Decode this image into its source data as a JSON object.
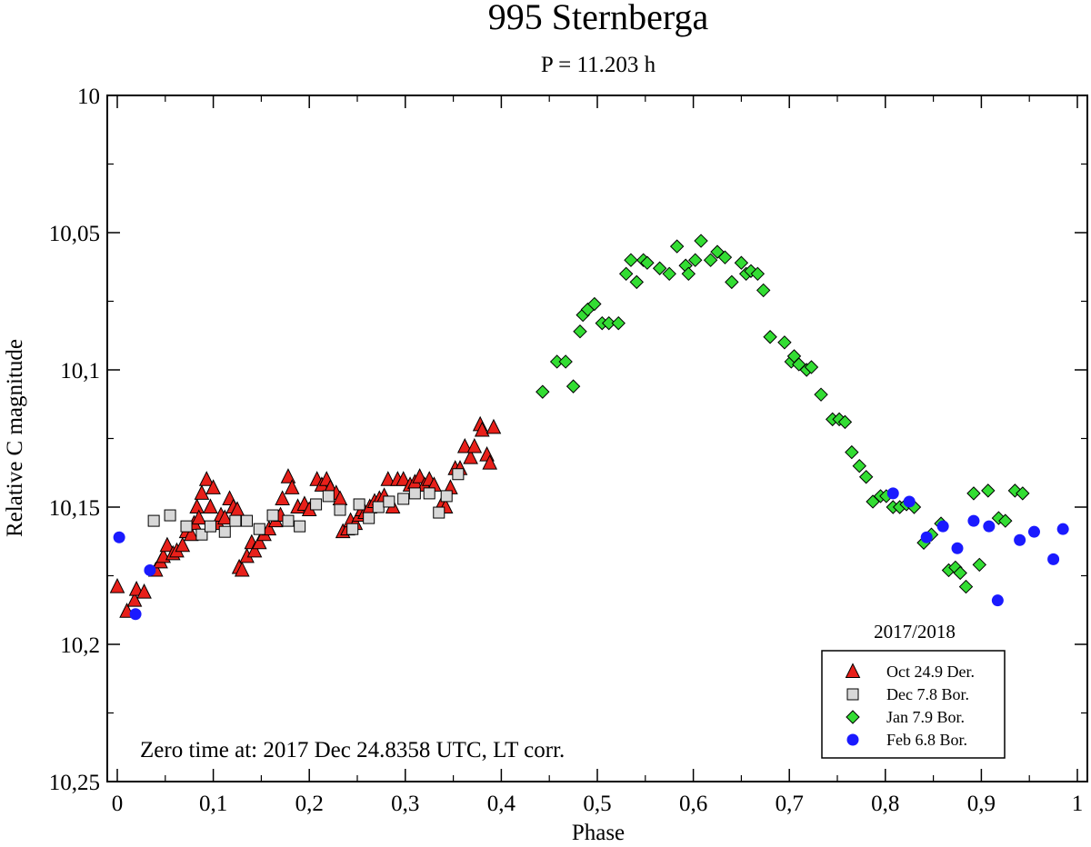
{
  "chart_data": {
    "type": "scatter",
    "title": "995 Sternberga",
    "subtitle": "P = 11.203 h",
    "xlabel": "Phase",
    "ylabel": "Relative C magnitude",
    "xlim": [
      0,
      1
    ],
    "ylim": [
      10,
      10.25
    ],
    "y_inverted": true,
    "x_ticks": [
      {
        "value": 0,
        "label": "0"
      },
      {
        "value": 0.1,
        "label": "0,1"
      },
      {
        "value": 0.2,
        "label": "0,2"
      },
      {
        "value": 0.3,
        "label": "0,3"
      },
      {
        "value": 0.4,
        "label": "0,4"
      },
      {
        "value": 0.5,
        "label": "0,5"
      },
      {
        "value": 0.6,
        "label": "0,6"
      },
      {
        "value": 0.7,
        "label": "0,7"
      },
      {
        "value": 0.8,
        "label": "0,8"
      },
      {
        "value": 0.9,
        "label": "0,9"
      },
      {
        "value": 1,
        "label": "1"
      }
    ],
    "y_ticks": [
      {
        "value": 10,
        "label": "10"
      },
      {
        "value": 10.05,
        "label": "10,05"
      },
      {
        "value": 10.1,
        "label": "10,1"
      },
      {
        "value": 10.15,
        "label": "10,15"
      },
      {
        "value": 10.2,
        "label": "10,2"
      },
      {
        "value": 10.25,
        "label": "10,25"
      }
    ],
    "legend": {
      "title": "2017/2018",
      "position": "bottom-right"
    },
    "annotation": "Zero time at: 2017 Dec 24.8358 UTC, LT corr.",
    "series": [
      {
        "name": "Oct 24.9 Der.",
        "marker": "triangle",
        "color": "#e8201a",
        "points": [
          [
            0.0,
            10.179
          ],
          [
            0.01,
            10.188
          ],
          [
            0.018,
            10.184
          ],
          [
            0.02,
            10.18
          ],
          [
            0.028,
            10.181
          ],
          [
            0.04,
            10.173
          ],
          [
            0.045,
            10.17
          ],
          [
            0.048,
            10.168
          ],
          [
            0.052,
            10.164
          ],
          [
            0.058,
            10.167
          ],
          [
            0.062,
            10.166
          ],
          [
            0.068,
            10.164
          ],
          [
            0.072,
            10.159
          ],
          [
            0.077,
            10.16
          ],
          [
            0.08,
            10.156
          ],
          [
            0.083,
            10.15
          ],
          [
            0.085,
            10.154
          ],
          [
            0.088,
            10.145
          ],
          [
            0.093,
            10.14
          ],
          [
            0.097,
            10.15
          ],
          [
            0.1,
            10.143
          ],
          [
            0.105,
            10.156
          ],
          [
            0.108,
            10.153
          ],
          [
            0.112,
            10.154
          ],
          [
            0.117,
            10.147
          ],
          [
            0.121,
            10.15
          ],
          [
            0.125,
            10.151
          ],
          [
            0.127,
            10.172
          ],
          [
            0.13,
            10.173
          ],
          [
            0.135,
            10.168
          ],
          [
            0.14,
            10.163
          ],
          [
            0.143,
            10.166
          ],
          [
            0.148,
            10.163
          ],
          [
            0.153,
            10.16
          ],
          [
            0.158,
            10.158
          ],
          [
            0.165,
            10.155
          ],
          [
            0.17,
            10.153
          ],
          [
            0.172,
            10.147
          ],
          [
            0.178,
            10.139
          ],
          [
            0.182,
            10.143
          ],
          [
            0.188,
            10.15
          ],
          [
            0.195,
            10.149
          ],
          [
            0.2,
            10.151
          ],
          [
            0.208,
            10.14
          ],
          [
            0.213,
            10.142
          ],
          [
            0.218,
            10.14
          ],
          [
            0.222,
            10.143
          ],
          [
            0.228,
            10.145
          ],
          [
            0.232,
            10.147
          ],
          [
            0.235,
            10.159
          ],
          [
            0.24,
            10.158
          ],
          [
            0.243,
            10.155
          ],
          [
            0.248,
            10.156
          ],
          [
            0.252,
            10.153
          ],
          [
            0.255,
            10.151
          ],
          [
            0.258,
            10.152
          ],
          [
            0.263,
            10.15
          ],
          [
            0.268,
            10.148
          ],
          [
            0.273,
            10.147
          ],
          [
            0.278,
            10.146
          ],
          [
            0.282,
            10.14
          ],
          [
            0.287,
            10.15
          ],
          [
            0.292,
            10.14
          ],
          [
            0.298,
            10.14
          ],
          [
            0.305,
            10.142
          ],
          [
            0.31,
            10.141
          ],
          [
            0.315,
            10.139
          ],
          [
            0.32,
            10.142
          ],
          [
            0.325,
            10.14
          ],
          [
            0.33,
            10.142
          ],
          [
            0.338,
            10.149
          ],
          [
            0.342,
            10.15
          ],
          [
            0.347,
            10.143
          ],
          [
            0.352,
            10.136
          ],
          [
            0.357,
            10.136
          ],
          [
            0.362,
            10.128
          ],
          [
            0.368,
            10.132
          ],
          [
            0.372,
            10.128
          ],
          [
            0.378,
            10.12
          ],
          [
            0.38,
            10.122
          ],
          [
            0.385,
            10.131
          ],
          [
            0.388,
            10.134
          ],
          [
            0.392,
            10.121
          ]
        ]
      },
      {
        "name": "Dec 7.8 Bor.",
        "marker": "square",
        "color": "#d8d8d8",
        "points": [
          [
            0.038,
            10.155
          ],
          [
            0.055,
            10.153
          ],
          [
            0.072,
            10.157
          ],
          [
            0.088,
            10.16
          ],
          [
            0.097,
            10.157
          ],
          [
            0.112,
            10.159
          ],
          [
            0.123,
            10.155
          ],
          [
            0.135,
            10.155
          ],
          [
            0.148,
            10.158
          ],
          [
            0.162,
            10.153
          ],
          [
            0.178,
            10.155
          ],
          [
            0.19,
            10.157
          ],
          [
            0.207,
            10.149
          ],
          [
            0.22,
            10.146
          ],
          [
            0.232,
            10.151
          ],
          [
            0.245,
            10.158
          ],
          [
            0.252,
            10.149
          ],
          [
            0.262,
            10.154
          ],
          [
            0.272,
            10.15
          ],
          [
            0.283,
            10.148
          ],
          [
            0.298,
            10.147
          ],
          [
            0.31,
            10.145
          ],
          [
            0.325,
            10.145
          ],
          [
            0.335,
            10.152
          ],
          [
            0.343,
            10.146
          ],
          [
            0.355,
            10.138
          ]
        ]
      },
      {
        "name": "Jan 7.9 Bor.",
        "marker": "diamond",
        "color": "#33dd33",
        "points": [
          [
            0.443,
            10.108
          ],
          [
            0.458,
            10.097
          ],
          [
            0.467,
            10.097
          ],
          [
            0.475,
            10.106
          ],
          [
            0.482,
            10.086
          ],
          [
            0.485,
            10.08
          ],
          [
            0.49,
            10.078
          ],
          [
            0.497,
            10.076
          ],
          [
            0.505,
            10.083
          ],
          [
            0.512,
            10.083
          ],
          [
            0.522,
            10.083
          ],
          [
            0.53,
            10.065
          ],
          [
            0.535,
            10.06
          ],
          [
            0.541,
            10.068
          ],
          [
            0.548,
            10.06
          ],
          [
            0.552,
            10.061
          ],
          [
            0.565,
            10.063
          ],
          [
            0.575,
            10.065
          ],
          [
            0.583,
            10.055
          ],
          [
            0.592,
            10.062
          ],
          [
            0.595,
            10.065
          ],
          [
            0.602,
            10.06
          ],
          [
            0.608,
            10.053
          ],
          [
            0.618,
            10.06
          ],
          [
            0.625,
            10.057
          ],
          [
            0.633,
            10.059
          ],
          [
            0.64,
            10.068
          ],
          [
            0.65,
            10.061
          ],
          [
            0.655,
            10.065
          ],
          [
            0.66,
            10.064
          ],
          [
            0.667,
            10.065
          ],
          [
            0.673,
            10.071
          ],
          [
            0.68,
            10.088
          ],
          [
            0.695,
            10.09
          ],
          [
            0.702,
            10.097
          ],
          [
            0.705,
            10.095
          ],
          [
            0.71,
            10.098
          ],
          [
            0.718,
            10.1
          ],
          [
            0.723,
            10.099
          ],
          [
            0.733,
            10.109
          ],
          [
            0.745,
            10.118
          ],
          [
            0.752,
            10.118
          ],
          [
            0.758,
            10.119
          ],
          [
            0.765,
            10.13
          ],
          [
            0.773,
            10.135
          ],
          [
            0.78,
            10.139
          ],
          [
            0.787,
            10.148
          ],
          [
            0.795,
            10.146
          ],
          [
            0.801,
            10.146
          ],
          [
            0.808,
            10.15
          ],
          [
            0.815,
            10.15
          ],
          [
            0.822,
            10.149
          ],
          [
            0.83,
            10.15
          ],
          [
            0.84,
            10.163
          ],
          [
            0.848,
            10.16
          ],
          [
            0.858,
            10.156
          ],
          [
            0.866,
            10.173
          ],
          [
            0.873,
            10.172
          ],
          [
            0.878,
            10.174
          ],
          [
            0.884,
            10.179
          ],
          [
            0.892,
            10.145
          ],
          [
            0.898,
            10.171
          ],
          [
            0.907,
            10.144
          ],
          [
            0.918,
            10.154
          ],
          [
            0.925,
            10.155
          ],
          [
            0.935,
            10.144
          ],
          [
            0.943,
            10.145
          ]
        ]
      },
      {
        "name": "Feb 6.8 Bor.",
        "marker": "circle",
        "color": "#1a1aff",
        "points": [
          [
            0.002,
            10.161
          ],
          [
            0.019,
            10.189
          ],
          [
            0.034,
            10.173
          ],
          [
            0.808,
            10.145
          ],
          [
            0.825,
            10.148
          ],
          [
            0.843,
            10.161
          ],
          [
            0.86,
            10.157
          ],
          [
            0.875,
            10.165
          ],
          [
            0.892,
            10.155
          ],
          [
            0.908,
            10.157
          ],
          [
            0.917,
            10.184
          ],
          [
            0.94,
            10.162
          ],
          [
            0.955,
            10.159
          ],
          [
            0.975,
            10.169
          ],
          [
            0.985,
            10.158
          ]
        ]
      }
    ]
  }
}
